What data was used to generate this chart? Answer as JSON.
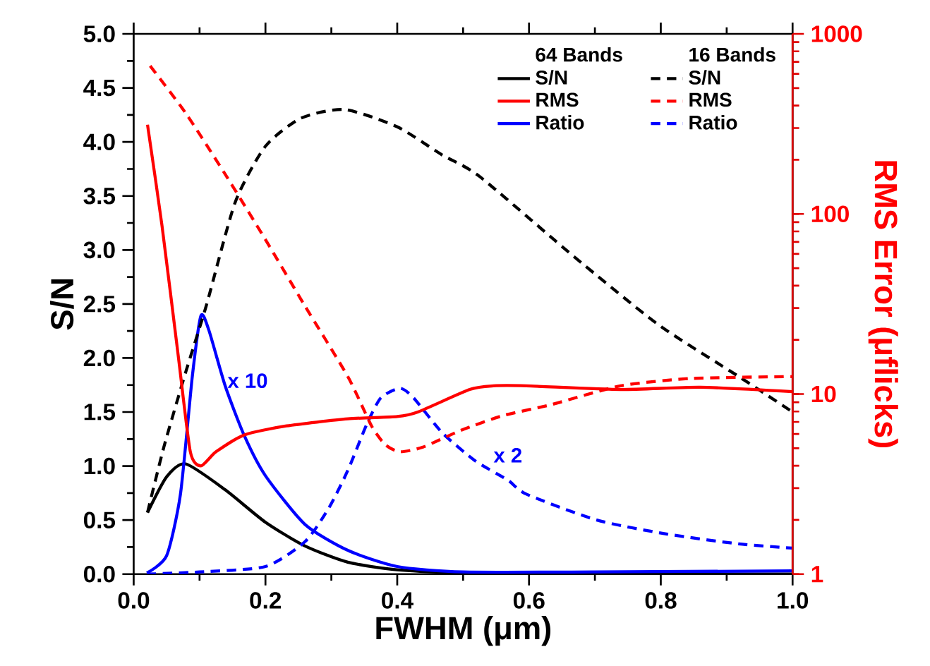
{
  "chart_data": {
    "type": "line",
    "xlabel": "FWHM (μm)",
    "ylabel": "S/N",
    "y2label": "RMS Error (μflicks)",
    "xlim": [
      0,
      1
    ],
    "xticks": [
      {
        "value": 0,
        "label": "0.0"
      },
      0.2,
      0.4,
      0.6,
      0.8,
      {
        "value": 1,
        "label": "1.0"
      }
    ],
    "ylim": [
      0,
      5
    ],
    "yticks": [
      {
        "value": 0,
        "label": "0.0"
      },
      0.5,
      {
        "value": 1,
        "label": "1.0"
      },
      1.5,
      {
        "value": 2,
        "label": "2.0"
      },
      2.5,
      {
        "value": 3,
        "label": "3.0"
      },
      3.5,
      {
        "value": 4,
        "label": "4.0"
      },
      4.5,
      {
        "value": 5,
        "label": "5.0"
      }
    ],
    "y2lim": [
      1,
      1000
    ],
    "y2ticks": [
      1,
      10,
      100,
      1000
    ],
    "log": "y2",
    "grid": false,
    "legend": "top right",
    "marker": "none",
    "annotations": [
      "64 Bands",
      "16 Bands",
      "x 10",
      "x 2"
    ],
    "series": [
      {
        "name": "S/N",
        "color": "#000000",
        "line_style": "solid",
        "x": [
          0.021,
          0.05,
          0.079,
          0.139,
          0.2,
          0.26,
          0.325,
          0.4,
          0.5,
          0.6,
          0.8,
          1.0
        ],
        "values": [
          0.57,
          0.9,
          1.02,
          0.78,
          0.48,
          0.26,
          0.11,
          0.04,
          0.01,
          0.0,
          0.0,
          0.0
        ]
      },
      {
        "name": "RMS",
        "color": "#ff0000",
        "line_style": "solid",
        "axis": "y2",
        "x": [
          0.021,
          0.043,
          0.068,
          0.086,
          0.102,
          0.125,
          0.168,
          0.232,
          0.325,
          0.4,
          0.432,
          0.51,
          0.546,
          0.596,
          0.739,
          0.86,
          1.0
        ],
        "values": [
          313,
          86,
          15.9,
          4.78,
          3.99,
          4.78,
          5.93,
          6.65,
          7.28,
          7.5,
          7.97,
          10.6,
          11.1,
          11.1,
          10.6,
          10.9,
          10.3
        ]
      },
      {
        "name": "Ratio",
        "color": "#0000ff",
        "line_style": "solid",
        "x": [
          0.02,
          0.05,
          0.071,
          0.089,
          0.102,
          0.114,
          0.139,
          0.168,
          0.2,
          0.26,
          0.325,
          0.4,
          0.5,
          0.7,
          1.0
        ],
        "values": [
          0.01,
          0.17,
          0.74,
          1.83,
          2.39,
          2.26,
          1.74,
          1.28,
          0.91,
          0.46,
          0.22,
          0.07,
          0.02,
          0.02,
          0.03
        ]
      },
      {
        "name": "S/N",
        "color": "#000000",
        "line_style": "dashed",
        "x": [
          0.021,
          0.046,
          0.079,
          0.11,
          0.154,
          0.2,
          0.254,
          0.32,
          0.4,
          0.468,
          0.525,
          0.668,
          0.796,
          0.918,
          1.0
        ],
        "values": [
          0.57,
          1.18,
          1.87,
          2.48,
          3.44,
          3.96,
          4.22,
          4.3,
          4.14,
          3.88,
          3.68,
          2.94,
          2.31,
          1.83,
          1.5
        ]
      },
      {
        "name": "RMS",
        "color": "#ff0000",
        "line_style": "dashed",
        "axis": "y2",
        "x": [
          0.025,
          0.079,
          0.139,
          0.2,
          0.26,
          0.325,
          0.361,
          0.382,
          0.404,
          0.439,
          0.496,
          0.561,
          0.632,
          0.739,
          0.846,
          1.0
        ],
        "values": [
          664,
          363,
          166,
          72,
          30.8,
          12.5,
          6.65,
          5.23,
          4.78,
          5.07,
          6.27,
          7.6,
          8.7,
          11.1,
          12.2,
          12.5
        ]
      },
      {
        "name": "Ratio",
        "color": "#0000ff",
        "line_style": "dashed",
        "x": [
          0.02,
          0.1,
          0.2,
          0.26,
          0.296,
          0.325,
          0.354,
          0.375,
          0.404,
          0.425,
          0.468,
          0.518,
          0.568,
          0.596,
          0.703,
          0.81,
          0.918,
          1.0
        ],
        "values": [
          0.0,
          0.02,
          0.07,
          0.3,
          0.61,
          0.96,
          1.39,
          1.63,
          1.72,
          1.63,
          1.31,
          1.05,
          0.87,
          0.74,
          0.5,
          0.37,
          0.28,
          0.24
        ]
      }
    ]
  }
}
